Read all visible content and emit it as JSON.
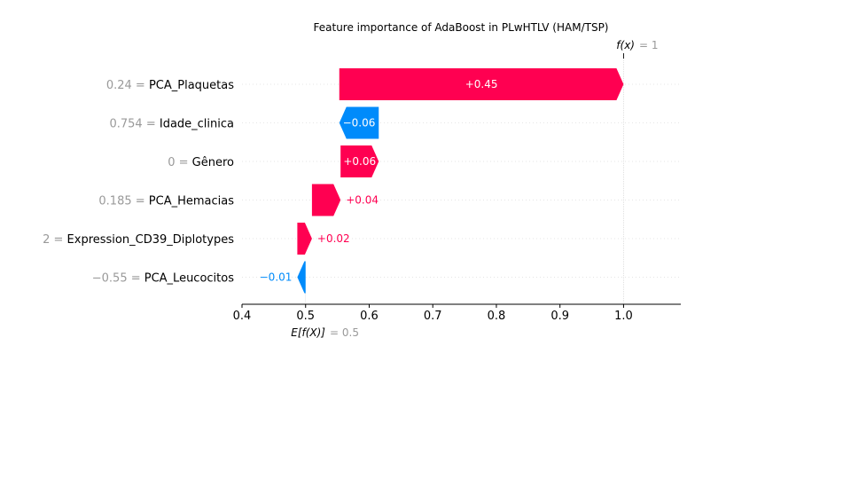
{
  "chart_data": {
    "type": "waterfall",
    "title": "Feature importance of AdaBoost in PLwHTLV (HAM/TSP)",
    "base_value": 0.5,
    "final_value": 1.0,
    "base_label": "E[f(X)]",
    "base_value_text": "= 0.5",
    "final_label": "f(x)",
    "final_value_text": "= 1",
    "xlim": [
      0.4,
      1.09
    ],
    "xticks": [
      0.4,
      0.5,
      0.6,
      0.7,
      0.8,
      0.9,
      1.0
    ],
    "xtick_labels": [
      "0.4",
      "0.5",
      "0.6",
      "0.7",
      "0.8",
      "0.9",
      "1.0"
    ],
    "features": [
      {
        "value_text": "0.24 =",
        "name": "PCA_Plaquetas",
        "start": 0.553,
        "contribution": 0.447,
        "label": "+0.45"
      },
      {
        "value_text": "0.754 =",
        "name": "Idade_clinica",
        "start": 0.615,
        "contribution": -0.062,
        "label": "−0.06"
      },
      {
        "value_text": "0 =",
        "name": "Gênero",
        "start": 0.555,
        "contribution": 0.06,
        "label": "+0.06"
      },
      {
        "value_text": "0.185 =",
        "name": "PCA_Hemacias",
        "start": 0.51,
        "contribution": 0.045,
        "label": "+0.04"
      },
      {
        "value_text": "2 =",
        "name": "Expression_CD39_Diplotypes",
        "start": 0.487,
        "contribution": 0.023,
        "label": "+0.02"
      },
      {
        "value_text": "−0.55 =",
        "name": "PCA_Leucocitos",
        "start": 0.5,
        "contribution": -0.013,
        "label": "−0.01"
      }
    ],
    "colors": {
      "positive": "#ff0051",
      "negative": "#008bfb",
      "axis": "#000000",
      "muted": "#999999",
      "guide": "#cccccc"
    }
  }
}
